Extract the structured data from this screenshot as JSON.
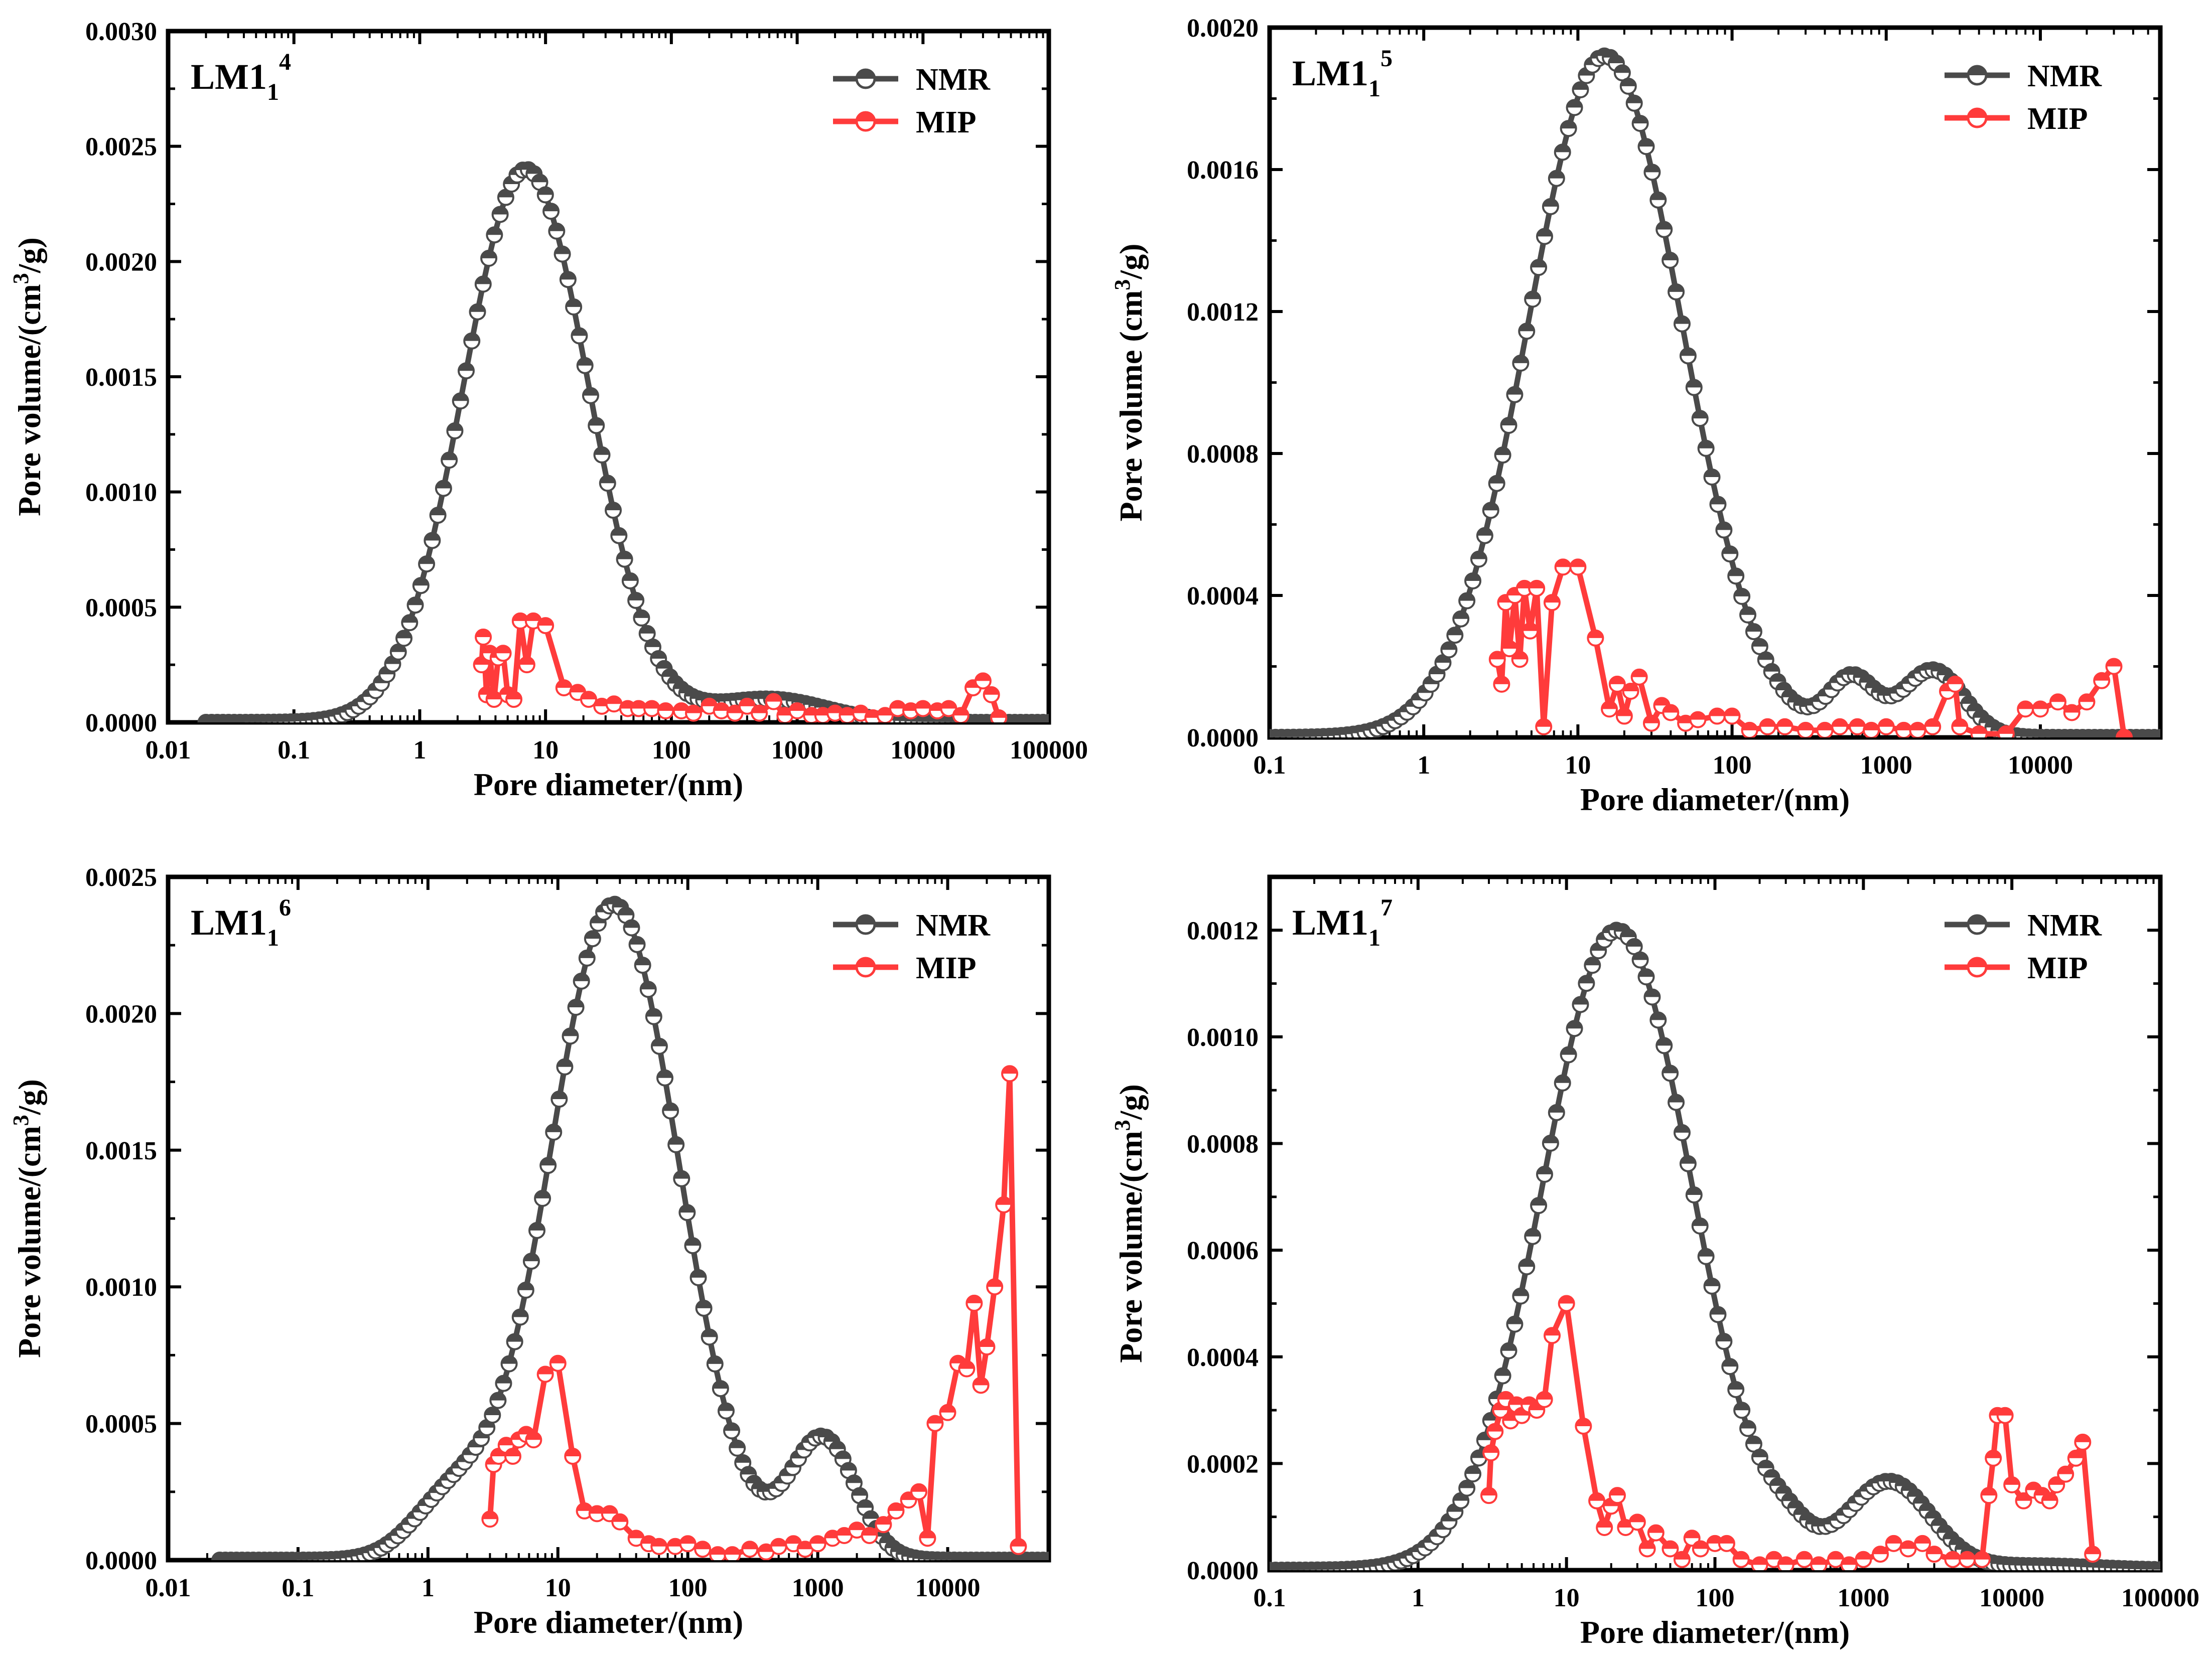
{
  "figure": {
    "colors": {
      "nmr": "#4a4a4a",
      "mip": "#ff3b3b",
      "axis": "#000000"
    },
    "legend": {
      "nmr_label": "NMR",
      "mip_label": "MIP"
    }
  },
  "chart_data": [
    {
      "type": "line",
      "panel": "top-left",
      "label": {
        "main": "LM1",
        "sub": "1",
        "sup": "4"
      },
      "xlabel": "Pore diameter/(nm)",
      "ylabel": {
        "pre": "Pore volume/(cm",
        "sup": "3",
        "post": "/g)"
      },
      "xscale": "log",
      "xlim": [
        0.01,
        100000
      ],
      "ylim": [
        0,
        0.003
      ],
      "xticks": [
        0.01,
        0.1,
        1,
        10,
        100,
        1000,
        10000,
        100000
      ],
      "xtick_labels": [
        "0.01",
        "0.1",
        "1",
        "10",
        "100",
        "1000",
        "10000",
        "100000"
      ],
      "yticks": [
        0,
        0.0005,
        0.001,
        0.0015,
        0.002,
        0.0025,
        0.003
      ],
      "ytick_labels": [
        "0.0000",
        "0.0005",
        "0.0010",
        "0.0015",
        "0.0020",
        "0.0025",
        "0.0030"
      ],
      "series": [
        {
          "name": "NMR",
          "components": [
            {
              "amp": 0.0024,
              "center_nm": 7,
              "width_decades": 0.5,
              "range_nm": [
                0.02,
                100000
              ]
            },
            {
              "amp": 0.0001,
              "center_nm": 600,
              "width_decades": 0.45,
              "range_nm": [
                0.02,
                100000
              ]
            }
          ],
          "n_points": 150
        },
        {
          "name": "MIP",
          "x": [
            3.1,
            3.2,
            3.4,
            3.6,
            3.9,
            4.2,
            4.6,
            5.0,
            5.6,
            6.3,
            7.1,
            8.0,
            10,
            14,
            18,
            22,
            28,
            35,
            45,
            55,
            70,
            90,
            120,
            150,
            200,
            250,
            320,
            400,
            500,
            650,
            800,
            1000,
            1300,
            1600,
            2000,
            2500,
            3200,
            4000,
            5000,
            6300,
            8000,
            10000,
            13000,
            16000,
            20000,
            25000,
            30000,
            35000,
            40000
          ],
          "y": [
            0.00025,
            0.00037,
            0.00012,
            0.0003,
            0.0001,
            0.00028,
            0.0003,
            0.00012,
            0.0001,
            0.00044,
            0.00025,
            0.00044,
            0.00042,
            0.00015,
            0.00013,
            0.0001,
            7e-05,
            8e-05,
            6e-05,
            6e-05,
            6e-05,
            5e-05,
            5e-05,
            4e-05,
            7e-05,
            5e-05,
            4e-05,
            7e-05,
            4e-05,
            9e-05,
            3e-05,
            5e-05,
            3e-05,
            3e-05,
            4e-05,
            3e-05,
            4e-05,
            2e-05,
            3e-05,
            6e-05,
            5e-05,
            6e-05,
            5e-05,
            6e-05,
            3e-05,
            0.00015,
            0.00018,
            0.00012,
            2e-05
          ]
        }
      ]
    },
    {
      "type": "line",
      "panel": "top-right",
      "label": {
        "main": "LM1",
        "sub": "1",
        "sup": "5"
      },
      "xlabel": "Pore diameter/(nm)",
      "ylabel": {
        "pre": "Pore volume (cm",
        "sup": "3",
        "post": "/g)"
      },
      "xscale": "log",
      "xlim": [
        0.1,
        60000
      ],
      "ylim": [
        0,
        0.002
      ],
      "xticks": [
        0.1,
        1,
        10,
        100,
        1000,
        10000
      ],
      "xtick_labels": [
        "0.1",
        "1",
        "10",
        "100",
        "1000",
        "10000"
      ],
      "yticks": [
        0,
        0.0004,
        0.0008,
        0.0012,
        0.0016,
        0.002
      ],
      "ytick_labels": [
        "0.0000",
        "0.0004",
        "0.0008",
        "0.0012",
        "0.0016",
        "0.0020"
      ],
      "series": [
        {
          "name": "NMR",
          "components": [
            {
              "amp": 0.00192,
              "center_nm": 15,
              "width_decades": 0.5,
              "range_nm": [
                0.1,
                60000
              ]
            },
            {
              "amp": 0.00016,
              "center_nm": 600,
              "width_decades": 0.15,
              "range_nm": [
                0.1,
                60000
              ]
            },
            {
              "amp": 0.00019,
              "center_nm": 2000,
              "width_decades": 0.2,
              "range_nm": [
                0.1,
                60000
              ]
            }
          ],
          "n_points": 150
        },
        {
          "name": "MIP",
          "x": [
            3.0,
            3.2,
            3.4,
            3.6,
            3.9,
            4.2,
            4.5,
            4.9,
            5.4,
            6.0,
            6.8,
            8.0,
            10,
            13,
            16,
            18,
            20,
            22,
            25,
            30,
            35,
            40,
            50,
            60,
            80,
            100,
            130,
            170,
            220,
            300,
            400,
            500,
            650,
            800,
            1000,
            1300,
            1600,
            2000,
            2500,
            2800,
            3000,
            4000,
            6000,
            8000,
            10000,
            13000,
            16000,
            20000,
            25000,
            30000,
            35000
          ],
          "y": [
            0.00022,
            0.00015,
            0.00038,
            0.00025,
            0.0004,
            0.00022,
            0.00042,
            0.0003,
            0.00042,
            3e-05,
            0.00038,
            0.00048,
            0.00048,
            0.00028,
            8e-05,
            0.00015,
            6e-05,
            0.00013,
            0.00017,
            4e-05,
            9e-05,
            7e-05,
            4e-05,
            5e-05,
            6e-05,
            6e-05,
            2e-05,
            3e-05,
            3e-05,
            2e-05,
            2e-05,
            3e-05,
            3e-05,
            2e-05,
            3e-05,
            2e-05,
            2e-05,
            3e-05,
            0.00013,
            0.00015,
            3e-05,
            1e-05,
            1e-05,
            8e-05,
            8e-05,
            0.0001,
            7e-05,
            0.0001,
            0.00016,
            0.0002,
            0.0
          ]
        }
      ]
    },
    {
      "type": "line",
      "panel": "bottom-left",
      "label": {
        "main": "LM1",
        "sub": "1",
        "sup": "6"
      },
      "xlabel": "Pore diameter/(nm)",
      "ylabel": {
        "pre": "Pore volume/(cm",
        "sup": "3",
        "post": "/g)"
      },
      "xscale": "log",
      "xlim": [
        0.01,
        60000
      ],
      "ylim": [
        0,
        0.0025
      ],
      "xticks": [
        0.01,
        0.1,
        1,
        10,
        100,
        1000,
        10000
      ],
      "xtick_labels": [
        "0.01",
        "0.1",
        "1",
        "10",
        "100",
        "1000",
        "10000"
      ],
      "yticks": [
        0,
        0.0005,
        0.001,
        0.0015,
        0.002,
        0.0025
      ],
      "ytick_labels": [
        "0.0000",
        "0.0005",
        "0.0010",
        "0.0015",
        "0.0020",
        "0.0025"
      ],
      "series": [
        {
          "name": "NMR",
          "components": [
            {
              "amp": 0.0024,
              "center_nm": 27,
              "width_decades": 0.5,
              "range_nm": [
                0.025,
                60000
              ]
            },
            {
              "amp": 0.00044,
              "center_nm": 1100,
              "width_decades": 0.25,
              "range_nm": [
                0.025,
                60000
              ]
            },
            {
              "amp": 0.0002,
              "center_nm": 1.5,
              "width_decades": 0.3,
              "range_nm": [
                0.025,
                60000
              ]
            }
          ],
          "n_points": 150
        },
        {
          "name": "MIP",
          "x": [
            3.0,
            3.2,
            3.5,
            4.0,
            4.5,
            5.0,
            5.7,
            6.5,
            8.0,
            10,
            13,
            16,
            20,
            25,
            30,
            40,
            50,
            60,
            80,
            100,
            130,
            170,
            220,
            300,
            400,
            500,
            650,
            800,
            1000,
            1300,
            1600,
            2000,
            2500,
            3200,
            4000,
            5000,
            6000,
            7000,
            8000,
            10000,
            12000,
            14000,
            16000,
            18000,
            20000,
            23000,
            27000,
            30000,
            35000
          ],
          "y": [
            0.00015,
            0.00035,
            0.00038,
            0.00042,
            0.00038,
            0.00044,
            0.00046,
            0.00044,
            0.00068,
            0.00072,
            0.00038,
            0.00018,
            0.00017,
            0.00017,
            0.00014,
            8e-05,
            6e-05,
            5e-05,
            5e-05,
            6e-05,
            4e-05,
            2e-05,
            2e-05,
            4e-05,
            3e-05,
            5e-05,
            6e-05,
            4e-05,
            6e-05,
            8e-05,
            9e-05,
            0.00011,
            9e-05,
            0.00013,
            0.00018,
            0.00022,
            0.00025,
            8e-05,
            0.0005,
            0.00054,
            0.00072,
            0.0007,
            0.00094,
            0.00064,
            0.00078,
            0.001,
            0.0013,
            0.00178,
            5e-05
          ]
        }
      ]
    },
    {
      "type": "line",
      "panel": "bottom-right",
      "label": {
        "main": "LM1",
        "sub": "1",
        "sup": "7"
      },
      "xlabel": "Pore diameter/(nm)",
      "ylabel": {
        "pre": "Pore volume/(cm",
        "sup": "3",
        "post": "/g)"
      },
      "xscale": "log",
      "xlim": [
        0.1,
        100000
      ],
      "ylim": [
        0,
        0.0013
      ],
      "xticks": [
        0.1,
        1,
        10,
        100,
        1000,
        10000,
        100000
      ],
      "xtick_labels": [
        "0.1",
        "1",
        "10",
        "100",
        "1000",
        "10000",
        "100000"
      ],
      "yticks": [
        0,
        0.0002,
        0.0004,
        0.0006,
        0.0008,
        0.001,
        0.0012
      ],
      "ytick_labels": [
        "0.0000",
        "0.0002",
        "0.0004",
        "0.0006",
        "0.0008",
        "0.0010",
        "0.0012"
      ],
      "series": [
        {
          "name": "NMR",
          "components": [
            {
              "amp": 0.0012,
              "center_nm": 22,
              "width_decades": 0.5,
              "range_nm": [
                0.1,
                100000
              ]
            },
            {
              "amp": 0.000165,
              "center_nm": 1500,
              "width_decades": 0.28,
              "range_nm": [
                0.1,
                100000
              ]
            },
            {
              "amp": 4e-05,
              "center_nm": 300,
              "width_decades": 0.15,
              "range_nm": [
                0.1,
                100000
              ]
            },
            {
              "amp": 8e-06,
              "center_nm": 15000,
              "width_decades": 0.4,
              "range_nm": [
                0.1,
                100000
              ]
            }
          ],
          "n_points": 150
        },
        {
          "name": "MIP",
          "x": [
            3.0,
            3.1,
            3.3,
            3.6,
            3.9,
            4.2,
            4.6,
            5.0,
            5.6,
            6.3,
            7.1,
            8.0,
            10,
            13,
            16,
            18,
            20,
            22,
            25,
            30,
            35,
            40,
            50,
            60,
            70,
            80,
            100,
            120,
            150,
            200,
            250,
            300,
            400,
            500,
            650,
            800,
            1000,
            1300,
            1600,
            2000,
            2500,
            3000,
            4000,
            5000,
            6300,
            7000,
            7500,
            8000,
            9000,
            10000,
            12000,
            14000,
            16000,
            18000,
            20000,
            23000,
            27000,
            30000,
            35000
          ],
          "y": [
            0.00014,
            0.00022,
            0.00026,
            0.0003,
            0.00032,
            0.00028,
            0.00031,
            0.00029,
            0.00031,
            0.0003,
            0.00032,
            0.00044,
            0.0005,
            0.00027,
            0.00013,
            8e-05,
            0.00012,
            0.00014,
            8e-05,
            9e-05,
            4e-05,
            7e-05,
            4e-05,
            2e-05,
            6e-05,
            4e-05,
            5e-05,
            5e-05,
            2e-05,
            1e-05,
            2e-05,
            1e-05,
            2e-05,
            1e-05,
            2e-05,
            1e-05,
            2e-05,
            3e-05,
            5e-05,
            4e-05,
            5e-05,
            3e-05,
            2e-05,
            2e-05,
            2e-05,
            0.00014,
            0.00021,
            0.00029,
            0.00029,
            0.00016,
            0.00013,
            0.00015,
            0.00014,
            0.00013,
            0.00016,
            0.00018,
            0.00021,
            0.00024,
            3e-05
          ]
        }
      ]
    }
  ]
}
